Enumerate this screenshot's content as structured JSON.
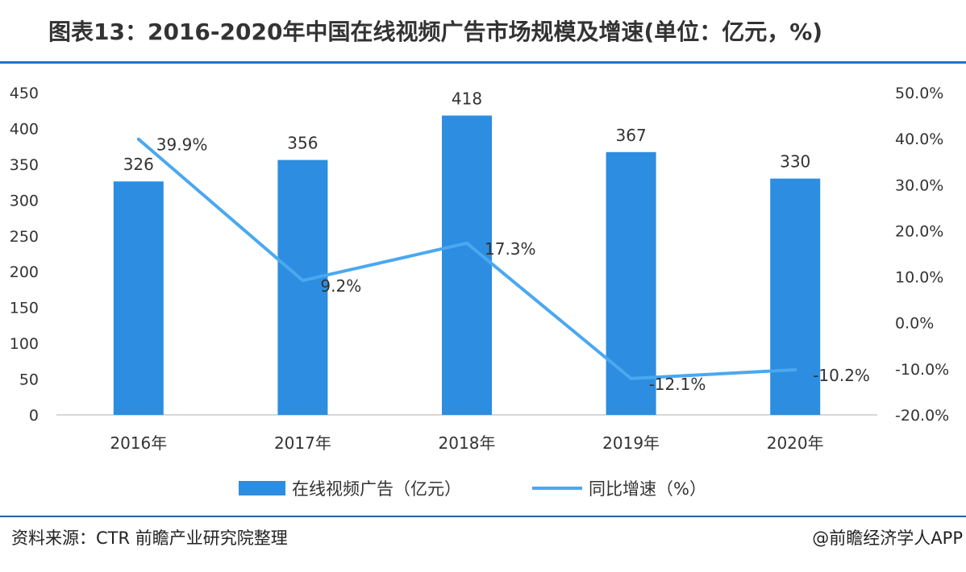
{
  "title": "图表13：2016-2020年中国在线视频广告市场规模及增速(单位：亿元，%)",
  "source": "资料来源：CTR 前瞻产业研究院整理",
  "credit": "@前瞻经济学人APP",
  "colors": {
    "bar": "#2d8de0",
    "line": "#4aa8f0",
    "text": "#333333",
    "axis": "#cccccc"
  },
  "chart_data": {
    "type": "bar",
    "categories": [
      "2016年",
      "2017年",
      "2018年",
      "2019年",
      "2020年"
    ],
    "series": [
      {
        "name": "在线视频广告（亿元）",
        "type": "bar",
        "axis": "left",
        "values": [
          326,
          356,
          418,
          367,
          330
        ],
        "labels": [
          "326",
          "356",
          "418",
          "367",
          "330"
        ]
      },
      {
        "name": "同比增速（%）",
        "type": "line",
        "axis": "right",
        "values": [
          39.9,
          9.2,
          17.3,
          -12.1,
          -10.2
        ],
        "labels": [
          "39.9%",
          "9.2%",
          "17.3%",
          "-12.1%",
          "-10.2%"
        ]
      }
    ],
    "y_left": {
      "lim": [
        0,
        450
      ],
      "ticks": [
        "0",
        "50",
        "100",
        "150",
        "200",
        "250",
        "300",
        "350",
        "400",
        "450"
      ]
    },
    "y_right": {
      "lim": [
        -20,
        50
      ],
      "ticks": [
        "-20.0%",
        "-10.0%",
        "0.0%",
        "10.0%",
        "20.0%",
        "30.0%",
        "40.0%",
        "50.0%"
      ]
    },
    "legend_position": "bottom",
    "grid": false
  }
}
